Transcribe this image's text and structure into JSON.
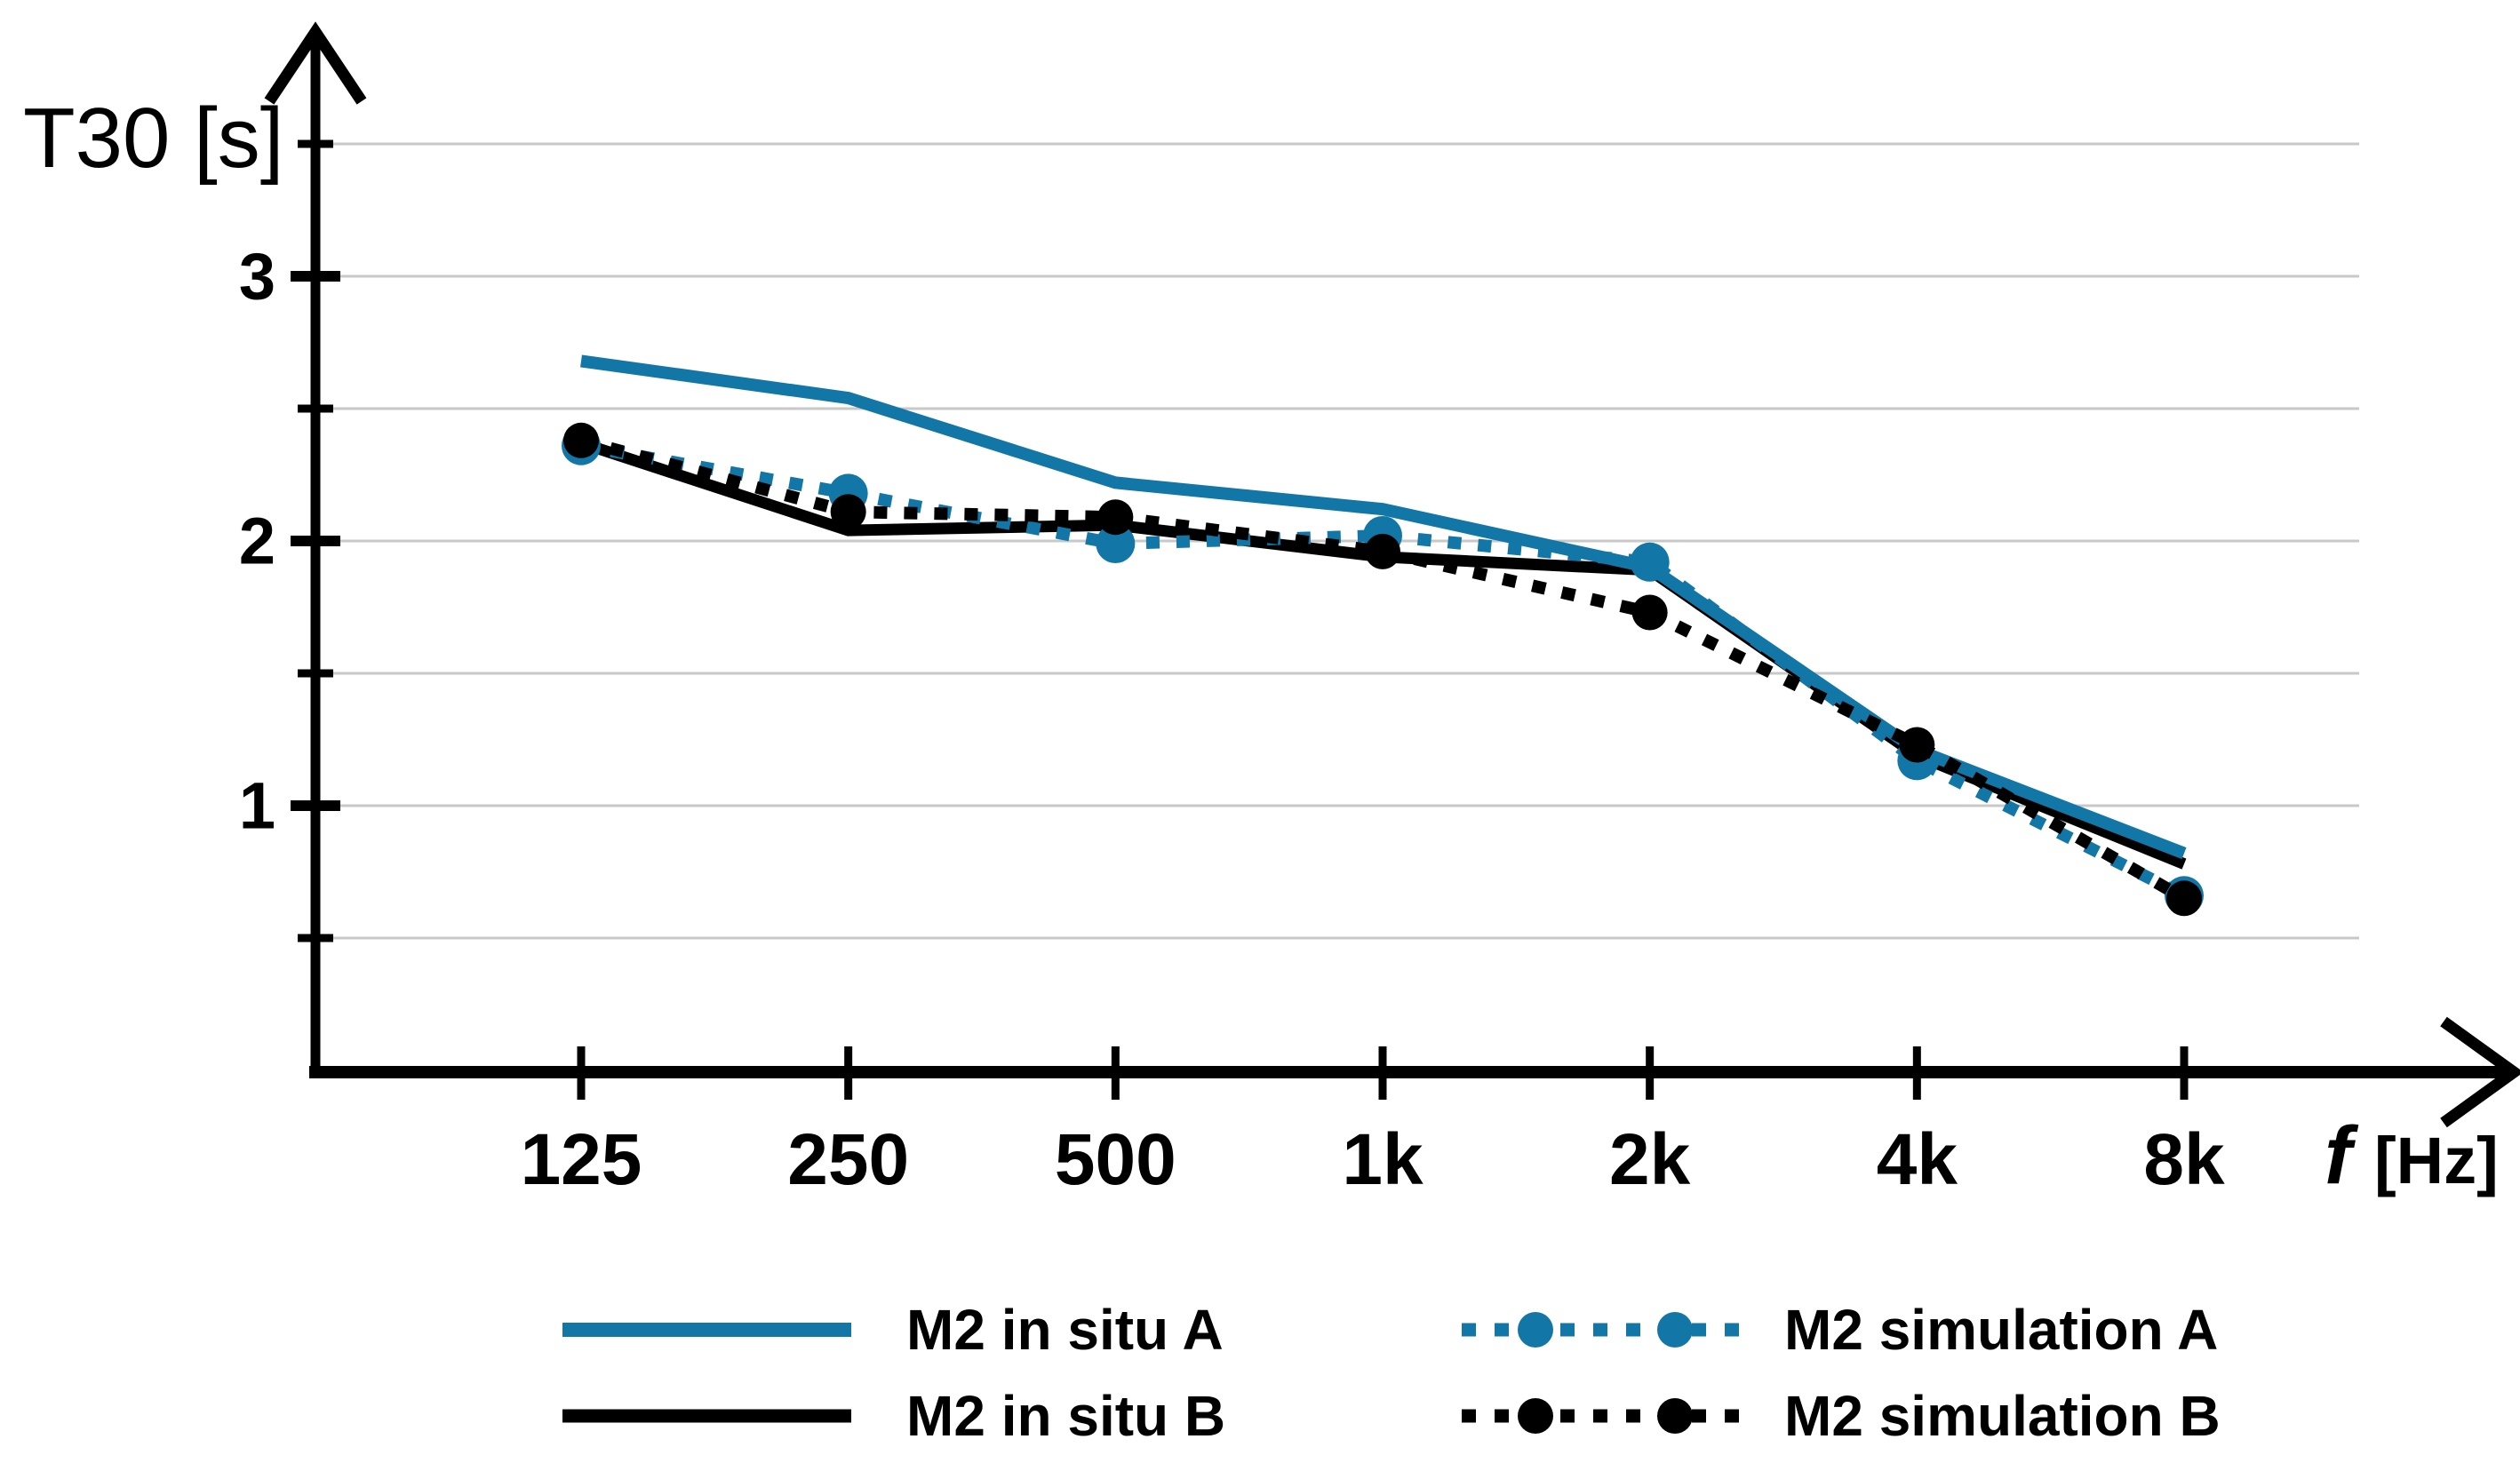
{
  "labels": {
    "y_axis_title": "T30 [s]",
    "x_axis_symbol": "f",
    "x_axis_unit": "[Hz]"
  },
  "colors": {
    "accent_blue": "#1277a6",
    "series_black": "#000000",
    "gridline": "#c8c8c8"
  },
  "chart_data": {
    "type": "line",
    "title": "",
    "ylabel": "T30 [s]",
    "xlabel": "f [Hz]",
    "categories": [
      "125",
      "250",
      "500",
      "1k",
      "2k",
      "4k",
      "8k"
    ],
    "y_tick_labels": [
      "1",
      "2",
      "3"
    ],
    "y_grid_values": [
      0.5,
      1,
      1.5,
      2,
      2.5,
      3,
      3.5
    ],
    "ylim": [
      0,
      3.9
    ],
    "grid": "horizontal",
    "legend_position": "bottom",
    "series": [
      {
        "name": "M2 in situ A",
        "style": "solid",
        "color": "#1277a6",
        "values": [
          2.68,
          2.54,
          2.22,
          2.12,
          1.9,
          1.21,
          0.82
        ]
      },
      {
        "name": "M2 in situ B",
        "style": "solid",
        "color": "#000000",
        "values": [
          2.37,
          2.04,
          2.06,
          1.94,
          1.89,
          1.19,
          0.78
        ]
      },
      {
        "name": "M2 simulation A",
        "style": "dashed-dot",
        "color": "#1277a6",
        "values": [
          2.36,
          2.18,
          1.99,
          2.02,
          1.92,
          1.17,
          0.66
        ]
      },
      {
        "name": "M2 simulation B",
        "style": "dashed-dot",
        "color": "#000000",
        "values": [
          2.38,
          2.11,
          2.09,
          1.96,
          1.73,
          1.23,
          0.65
        ]
      }
    ]
  }
}
